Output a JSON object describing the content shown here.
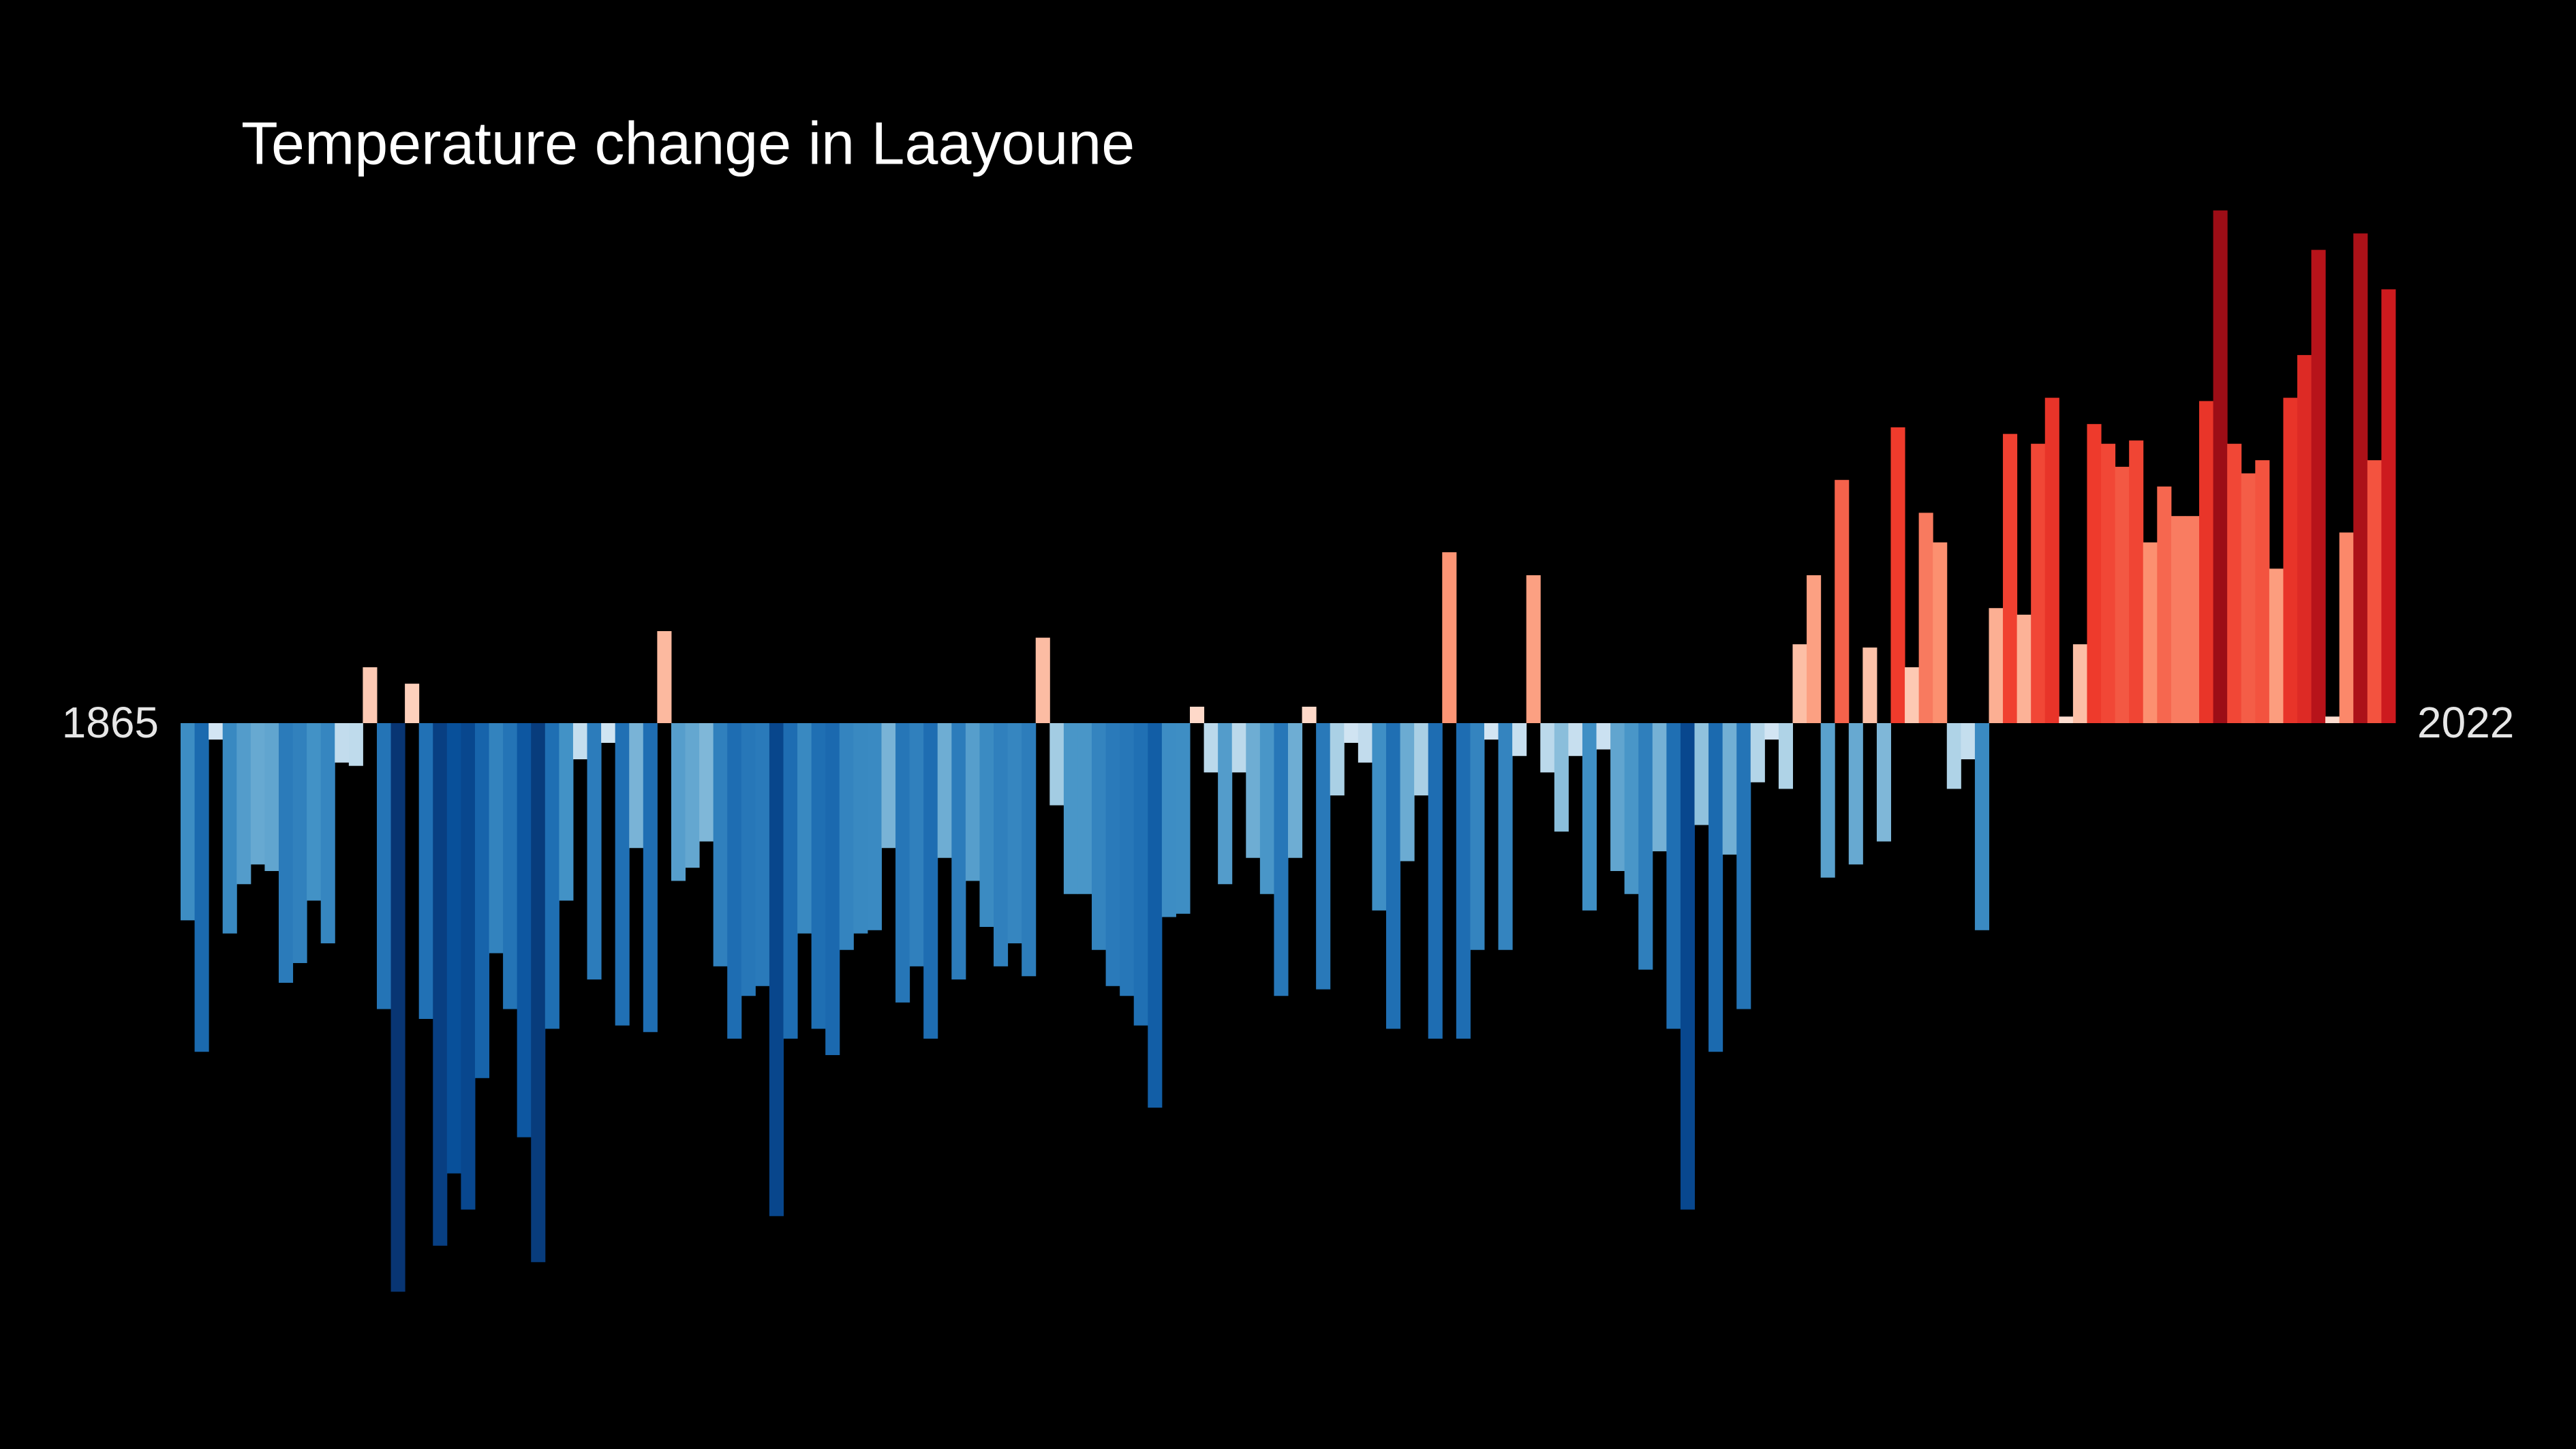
{
  "chart_data": {
    "type": "bar",
    "title": "Temperature change in Laayoune",
    "categories": [
      "1865",
      null,
      null,
      null,
      null,
      null,
      null,
      null,
      null,
      null,
      null,
      null,
      null,
      null,
      null,
      null,
      null,
      null,
      null,
      null,
      null,
      null,
      null,
      null,
      null,
      null,
      null,
      null,
      null,
      null,
      null,
      null,
      null,
      null,
      null,
      null,
      null,
      null,
      null,
      null,
      null,
      null,
      null,
      null,
      null,
      null,
      null,
      null,
      null,
      null,
      null,
      null,
      null,
      null,
      null,
      null,
      null,
      null,
      null,
      null,
      null,
      null,
      null,
      null,
      null,
      null,
      null,
      null,
      null,
      null,
      null,
      null,
      null,
      null,
      null,
      null,
      null,
      null,
      null,
      null,
      null,
      null,
      null,
      null,
      null,
      null,
      null,
      null,
      null,
      null,
      null,
      null,
      null,
      null,
      null,
      null,
      null,
      null,
      null,
      null,
      null,
      null,
      null,
      null,
      null,
      null,
      null,
      null,
      null,
      null,
      null,
      null,
      null,
      null,
      null,
      null,
      null,
      null,
      null,
      null,
      null,
      null,
      null,
      null,
      null,
      null,
      null,
      null,
      null,
      null,
      null,
      null,
      null,
      null,
      null,
      null,
      null,
      null,
      null,
      null,
      null,
      null,
      null,
      null,
      null,
      null,
      null,
      null,
      null,
      null,
      null,
      null,
      null,
      null,
      null,
      null,
      null,
      "2022"
    ],
    "values": [
      -0.6,
      -1.0,
      -0.05,
      -0.64,
      -0.49,
      -0.43,
      -0.45,
      -0.79,
      -0.73,
      -0.54,
      -0.67,
      -0.12,
      -0.13,
      0.17,
      -0.87,
      -1.73,
      0.12,
      -0.9,
      -1.59,
      -1.37,
      -1.48,
      -1.08,
      -0.7,
      -0.87,
      -1.26,
      -1.64,
      -0.93,
      -0.54,
      -0.11,
      -0.78,
      -0.06,
      -0.92,
      -0.38,
      -0.94,
      0.28,
      -0.48,
      -0.44,
      -0.36,
      -0.74,
      -0.96,
      -0.83,
      -0.8,
      -1.5,
      -0.96,
      -0.64,
      -0.93,
      -1.01,
      -0.69,
      -0.64,
      -0.63,
      -0.38,
      -0.85,
      -0.74,
      -0.96,
      -0.41,
      -0.78,
      -0.48,
      -0.62,
      -0.74,
      -0.67,
      -0.77,
      0.26,
      -0.25,
      -0.52,
      -0.52,
      -0.69,
      -0.8,
      -0.83,
      -0.92,
      -1.17,
      -0.59,
      -0.58,
      0.05,
      -0.15,
      -0.49,
      -0.15,
      -0.41,
      -0.52,
      -0.83,
      -0.41,
      0.05,
      -0.81,
      -0.22,
      -0.06,
      -0.12,
      -0.57,
      -0.93,
      -0.42,
      -0.22,
      -0.96,
      0.52,
      -0.96,
      -0.69,
      -0.05,
      -0.69,
      -0.1,
      0.45,
      -0.15,
      -0.33,
      -0.1,
      -0.57,
      -0.08,
      -0.45,
      -0.52,
      -0.75,
      -0.39,
      -0.93,
      -1.48,
      -0.31,
      -1.0,
      -0.4,
      -0.87,
      -0.18,
      -0.05,
      -0.2,
      0.24,
      0.45,
      -0.47,
      0.74,
      -0.43,
      0.23,
      -0.36,
      0.9,
      0.17,
      0.64,
      0.55,
      -0.2,
      -0.11,
      -0.63,
      0.35,
      0.88,
      0.33,
      0.85,
      0.99,
      0.02,
      0.24,
      0.91,
      0.85,
      0.78,
      0.86,
      0.55,
      0.72,
      0.63,
      0.63,
      0.98,
      1.56,
      0.85,
      0.76,
      0.8,
      0.47,
      0.99,
      1.12,
      1.44,
      0.02,
      0.58,
      1.49,
      0.8,
      1.32
    ],
    "ylim": [
      -1.8,
      1.8
    ]
  }
}
